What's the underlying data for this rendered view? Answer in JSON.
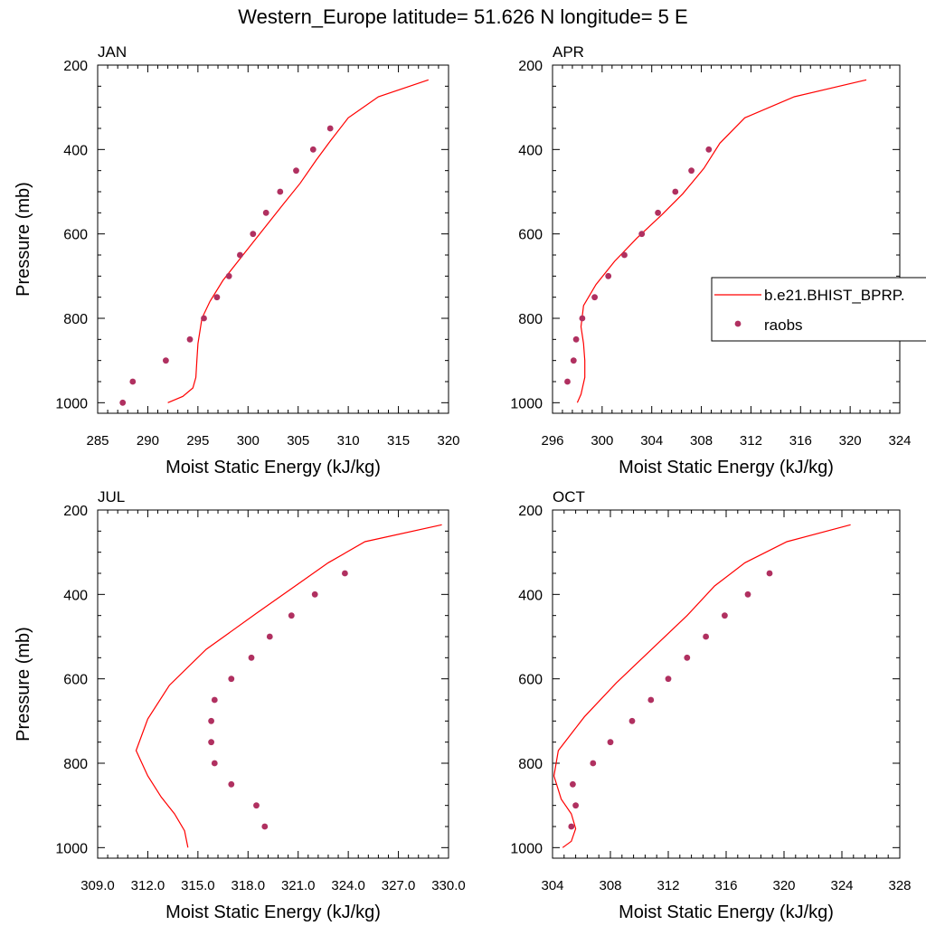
{
  "figure": {
    "title": "Western_Europe  latitude= 51.626 N longitude= 5 E",
    "model_line_color": "#ff0000",
    "obs_dot_color": "#b03060"
  },
  "legend": {
    "panel": "APR",
    "model_label": "b.e21.BHIST_BPRP.",
    "obs_label": "raobs"
  },
  "chart_data": [
    {
      "type": "line",
      "panel_label": "JAN",
      "xlabel": "Moist Static Energy (kJ/kg)",
      "ylabel": "Pressure (mb)",
      "xlim": [
        285,
        320
      ],
      "ylim": [
        200,
        1025
      ],
      "y_inverted": true,
      "xticks": [
        285,
        290,
        295,
        300,
        305,
        310,
        315,
        320
      ],
      "xtick_labels": [
        "285",
        "290",
        "295",
        "300",
        "305",
        "310",
        "315",
        "320"
      ],
      "yticks": [
        200,
        400,
        600,
        800,
        1000
      ],
      "ytick_labels": [
        "200",
        "400",
        "600",
        "800",
        "1000"
      ],
      "series": [
        {
          "name": "b.e21.BHIST_BPRP.",
          "style": "line",
          "points": [
            [
              292.0,
              1000
            ],
            [
              293.5,
              985
            ],
            [
              294.5,
              965
            ],
            [
              294.8,
              940
            ],
            [
              294.9,
              900
            ],
            [
              295.0,
              860
            ],
            [
              295.4,
              800
            ],
            [
              296.2,
              760
            ],
            [
              297.5,
              710
            ],
            [
              299.5,
              650
            ],
            [
              301.5,
              590
            ],
            [
              303.5,
              530
            ],
            [
              305.2,
              480
            ],
            [
              306.8,
              425
            ],
            [
              308.2,
              380
            ],
            [
              310.0,
              325
            ],
            [
              313.0,
              275
            ],
            [
              318.0,
              235
            ]
          ]
        },
        {
          "name": "raobs",
          "style": "scatter",
          "points": [
            [
              287.5,
              1000
            ],
            [
              288.5,
              950
            ],
            [
              291.8,
              900
            ],
            [
              294.2,
              850
            ],
            [
              295.6,
              800
            ],
            [
              296.9,
              750
            ],
            [
              298.1,
              700
            ],
            [
              299.2,
              650
            ],
            [
              300.5,
              600
            ],
            [
              301.8,
              550
            ],
            [
              303.2,
              500
            ],
            [
              304.8,
              450
            ],
            [
              306.5,
              400
            ],
            [
              308.2,
              350
            ]
          ]
        }
      ]
    },
    {
      "type": "line",
      "panel_label": "APR",
      "xlabel": "Moist Static Energy (kJ/kg)",
      "ylabel": "",
      "xlim": [
        296,
        324
      ],
      "ylim": [
        200,
        1025
      ],
      "y_inverted": true,
      "xticks": [
        296,
        300,
        304,
        308,
        312,
        316,
        320,
        324
      ],
      "xtick_labels": [
        "296",
        "300",
        "304",
        "308",
        "312",
        "316",
        "320",
        "324"
      ],
      "yticks": [
        200,
        400,
        600,
        800,
        1000
      ],
      "ytick_labels": [
        "200",
        "400",
        "600",
        "800",
        "1000"
      ],
      "series": [
        {
          "name": "b.e21.BHIST_BPRP.",
          "style": "line",
          "points": [
            [
              298.0,
              1000
            ],
            [
              298.3,
              980
            ],
            [
              298.6,
              940
            ],
            [
              298.6,
              900
            ],
            [
              298.5,
              860
            ],
            [
              298.3,
              820
            ],
            [
              298.5,
              770
            ],
            [
              299.5,
              720
            ],
            [
              301.0,
              665
            ],
            [
              302.8,
              610
            ],
            [
              304.8,
              555
            ],
            [
              306.5,
              505
            ],
            [
              308.2,
              445
            ],
            [
              309.5,
              385
            ],
            [
              311.5,
              325
            ],
            [
              315.5,
              275
            ],
            [
              321.3,
              235
            ]
          ]
        },
        {
          "name": "raobs",
          "style": "scatter",
          "points": [
            [
              297.2,
              950
            ],
            [
              297.7,
              900
            ],
            [
              297.9,
              850
            ],
            [
              298.4,
              800
            ],
            [
              299.4,
              750
            ],
            [
              300.5,
              700
            ],
            [
              301.8,
              650
            ],
            [
              303.2,
              600
            ],
            [
              304.5,
              550
            ],
            [
              305.9,
              500
            ],
            [
              307.2,
              450
            ],
            [
              308.6,
              400
            ]
          ]
        }
      ]
    },
    {
      "type": "line",
      "panel_label": "JUL",
      "xlabel": "Moist Static Energy (kJ/kg)",
      "ylabel": "Pressure (mb)",
      "xlim": [
        309,
        330
      ],
      "ylim": [
        200,
        1025
      ],
      "y_inverted": true,
      "xticks": [
        309,
        312,
        315,
        318,
        321,
        324,
        327,
        330
      ],
      "xtick_labels": [
        "309.0",
        "312.0",
        "315.0",
        "318.0",
        "321.0",
        "324.0",
        "327.0",
        "330.0"
      ],
      "yticks": [
        200,
        400,
        600,
        800,
        1000
      ],
      "ytick_labels": [
        "200",
        "400",
        "600",
        "800",
        "1000"
      ],
      "series": [
        {
          "name": "b.e21.BHIST_BPRP.",
          "style": "line",
          "points": [
            [
              314.4,
              1000
            ],
            [
              314.2,
              960
            ],
            [
              313.6,
              920
            ],
            [
              312.8,
              880
            ],
            [
              312.0,
              830
            ],
            [
              311.3,
              770
            ],
            [
              312.0,
              695
            ],
            [
              313.3,
              615
            ],
            [
              315.5,
              530
            ],
            [
              318.5,
              445
            ],
            [
              321.0,
              375
            ],
            [
              322.8,
              325
            ],
            [
              325.0,
              275
            ],
            [
              329.6,
              235
            ]
          ]
        },
        {
          "name": "raobs",
          "style": "scatter",
          "points": [
            [
              319.0,
              950
            ],
            [
              318.5,
              900
            ],
            [
              317.0,
              850
            ],
            [
              316.0,
              800
            ],
            [
              315.8,
              750
            ],
            [
              315.8,
              700
            ],
            [
              316.0,
              650
            ],
            [
              317.0,
              600
            ],
            [
              318.2,
              550
            ],
            [
              319.3,
              500
            ],
            [
              320.6,
              450
            ],
            [
              322.0,
              400
            ],
            [
              323.8,
              350
            ]
          ]
        }
      ]
    },
    {
      "type": "line",
      "panel_label": "OCT",
      "xlabel": "Moist Static Energy (kJ/kg)",
      "ylabel": "",
      "xlim": [
        304,
        328
      ],
      "ylim": [
        200,
        1025
      ],
      "y_inverted": true,
      "xticks": [
        304,
        308,
        312,
        316,
        320,
        324,
        328
      ],
      "xtick_labels": [
        "304",
        "308",
        "312",
        "316",
        "320",
        "324",
        "328"
      ],
      "yticks": [
        200,
        400,
        600,
        800,
        1000
      ],
      "ytick_labels": [
        "200",
        "400",
        "600",
        "800",
        "1000"
      ],
      "series": [
        {
          "name": "b.e21.BHIST_BPRP.",
          "style": "line",
          "points": [
            [
              304.7,
              1000
            ],
            [
              305.3,
              985
            ],
            [
              305.6,
              955
            ],
            [
              305.3,
              920
            ],
            [
              304.6,
              885
            ],
            [
              304.1,
              830
            ],
            [
              304.4,
              770
            ],
            [
              306.2,
              690
            ],
            [
              308.4,
              610
            ],
            [
              311.0,
              525
            ],
            [
              313.3,
              450
            ],
            [
              315.2,
              380
            ],
            [
              317.3,
              325
            ],
            [
              320.2,
              275
            ],
            [
              324.6,
              235
            ]
          ]
        },
        {
          "name": "raobs",
          "style": "scatter",
          "points": [
            [
              305.3,
              950
            ],
            [
              305.6,
              900
            ],
            [
              305.4,
              850
            ],
            [
              306.8,
              800
            ],
            [
              308.0,
              750
            ],
            [
              309.5,
              700
            ],
            [
              310.8,
              650
            ],
            [
              312.0,
              600
            ],
            [
              313.3,
              550
            ],
            [
              314.6,
              500
            ],
            [
              315.9,
              450
            ],
            [
              317.5,
              400
            ],
            [
              319.0,
              350
            ]
          ]
        }
      ]
    }
  ]
}
